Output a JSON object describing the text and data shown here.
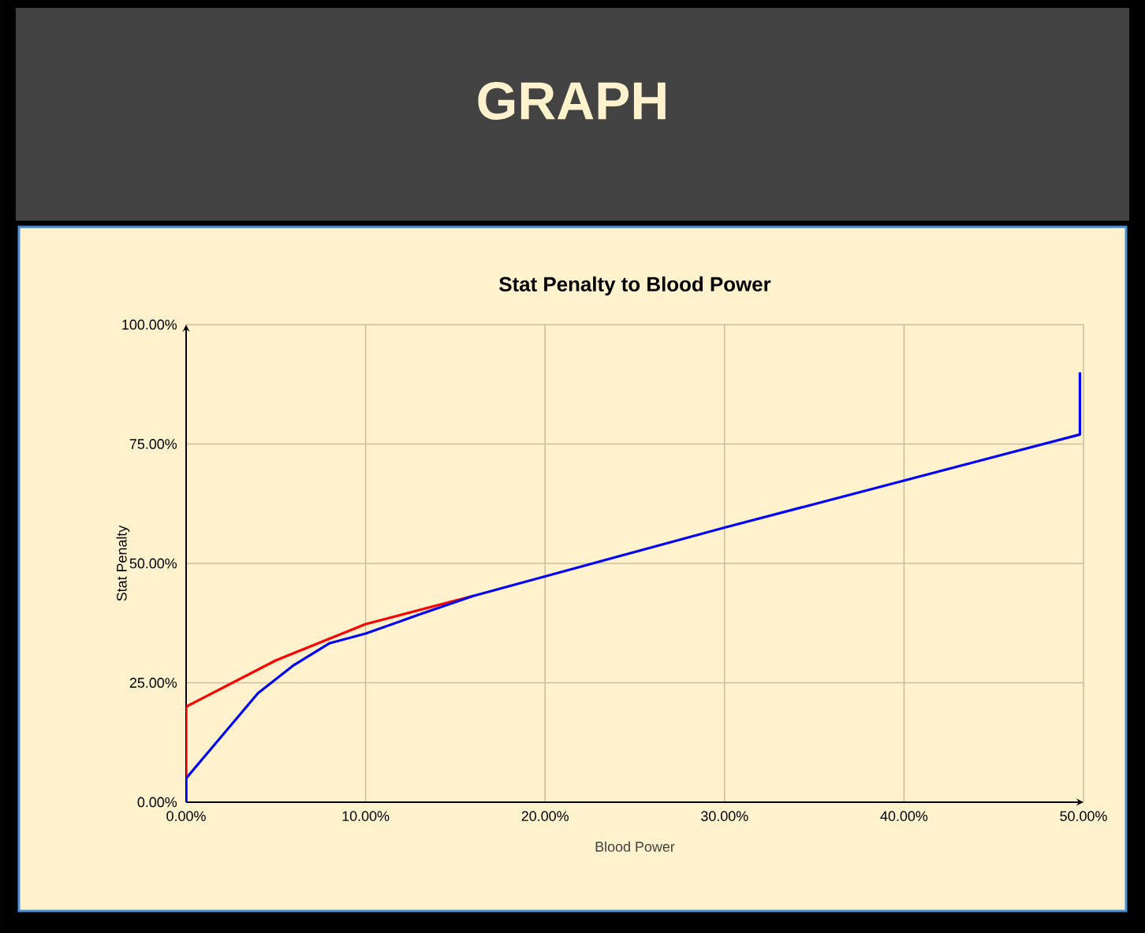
{
  "chart_data": {
    "type": "line",
    "title": "Stat Penalty to Blood Power",
    "xlabel": "Blood Power",
    "ylabel": "Stat Penalty",
    "annotations": [
      "GRAPH"
    ],
    "series": [
      {
        "color": "#ff0000",
        "x": [
          0,
          0,
          5,
          10,
          16
        ],
        "values": [
          0,
          20,
          29.7,
          37.3,
          43.2
        ]
      },
      {
        "color": "#0000ff",
        "x": [
          0,
          0,
          2,
          4,
          6,
          8,
          10,
          13,
          16,
          30,
          49.8,
          49.8
        ],
        "values": [
          0,
          5,
          13.9,
          22.8,
          28.7,
          33.3,
          35.3,
          39.3,
          43.2,
          57.5,
          77,
          90
        ]
      }
    ],
    "xlim": [
      0,
      50
    ],
    "ylim": [
      0,
      100
    ],
    "xticks": [
      {
        "value": 0,
        "label": "0.00%"
      },
      {
        "value": 10,
        "label": "10.00%"
      },
      {
        "value": 20,
        "label": "20.00%"
      },
      {
        "value": 30,
        "label": "30.00%"
      },
      {
        "value": 40,
        "label": "40.00%"
      },
      {
        "value": 50,
        "label": "50.00%"
      }
    ],
    "yticks": [
      {
        "value": 0,
        "label": "0.00%"
      },
      {
        "value": 25,
        "label": "25.00%"
      },
      {
        "value": 50,
        "label": "50.00%"
      },
      {
        "value": 75,
        "label": "75.00%"
      },
      {
        "value": 100,
        "label": "100.00%"
      }
    ],
    "grid": true,
    "marker": "none",
    "line_style": "solid"
  }
}
